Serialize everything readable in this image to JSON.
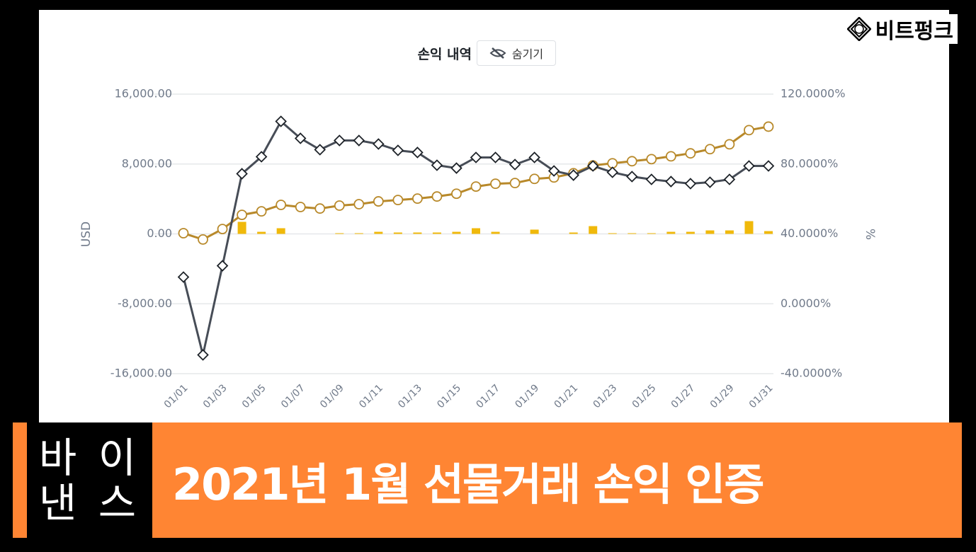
{
  "logo": "비트펑크",
  "banner": {
    "exchange_line1": "바 이",
    "exchange_line2": "낸 스",
    "title": "2021년 1월 선물거래 손익 인증"
  },
  "chart_data": {
    "type": "line",
    "title": "손익 내역",
    "hide_button": "숨기기",
    "y_label": "USD",
    "y2_label": "%",
    "categories": [
      "01/01",
      null,
      "01/03",
      null,
      "01/05",
      null,
      "01/07",
      null,
      "01/09",
      null,
      "01/11",
      null,
      "01/13",
      null,
      "01/15",
      null,
      "01/17",
      null,
      "01/19",
      null,
      "01/21",
      null,
      "01/23",
      null,
      "01/25",
      null,
      "01/27",
      null,
      "01/29",
      null,
      "01/31"
    ],
    "ylim": [
      -16000,
      16000
    ],
    "yticks": [
      {
        "value": -16000,
        "label": "-16,000.00"
      },
      {
        "value": -8000,
        "label": "-8,000.00"
      },
      {
        "value": 0,
        "label": "0.00"
      },
      {
        "value": 8000,
        "label": "8,000.00"
      },
      {
        "value": 16000,
        "label": "16,000.00"
      }
    ],
    "y2lim": [
      -40,
      120
    ],
    "y2ticks": [
      {
        "value": -40,
        "label": "-40.0000%"
      },
      {
        "value": 0,
        "label": "0.0000%"
      },
      {
        "value": 40,
        "label": "40.0000%"
      },
      {
        "value": 80,
        "label": "80.0000%"
      },
      {
        "value": 120,
        "label": "120.0000%"
      }
    ],
    "grid": true,
    "series": [
      {
        "type": "bar",
        "color": "#f0b90b",
        "values": [
          0,
          0,
          0,
          1380,
          240,
          650,
          0,
          0,
          80,
          80,
          240,
          160,
          160,
          160,
          240,
          650,
          240,
          0,
          490,
          0,
          160,
          890,
          80,
          80,
          80,
          240,
          240,
          400,
          400,
          1460,
          320
        ]
      },
      {
        "type": "line",
        "marker": "circle",
        "axis": "y2",
        "color": "#b8892a",
        "values": [
          40.4,
          36.8,
          42.8,
          50.9,
          52.9,
          56.6,
          55.4,
          54.5,
          56.2,
          57.0,
          58.6,
          59.4,
          60.2,
          61.4,
          63.0,
          67.1,
          68.7,
          69.1,
          71.5,
          72.3,
          74.7,
          79.2,
          80.4,
          81.6,
          82.8,
          84.4,
          86.1,
          88.5,
          91.3,
          99.4,
          101.4
        ]
      },
      {
        "type": "line",
        "marker": "diamond",
        "color": "#474d57",
        "values": [
          -4940,
          -13850,
          -3650,
          6890,
          8830,
          12880,
          10940,
          9640,
          10690,
          10690,
          10290,
          9560,
          9320,
          7860,
          7530,
          8750,
          8750,
          7940,
          8750,
          7210,
          6720,
          7780,
          7050,
          6560,
          6240,
          5990,
          5750,
          5910,
          6240,
          7780,
          7780
        ]
      }
    ]
  }
}
